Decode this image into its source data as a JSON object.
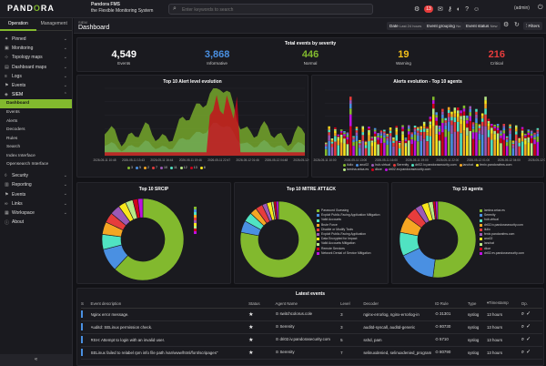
{
  "topbar": {
    "logo": "PANDORA",
    "product_line1": "Pandora FMS",
    "product_line2": "the Flexible Monitoring System",
    "search_placeholder": "Enter keywords to search",
    "alert_count": "13",
    "user": "(admin)"
  },
  "sidebar": {
    "tabs": [
      "Operation",
      "Management"
    ],
    "items": [
      {
        "label": "Pinned"
      },
      {
        "label": "Monitoring"
      },
      {
        "label": "Topology maps"
      },
      {
        "label": "Dashboard maps"
      },
      {
        "label": "Logs"
      },
      {
        "label": "Events"
      },
      {
        "label": "SIEM"
      }
    ],
    "submenu": [
      "Dashboard",
      "Events",
      "Alerts",
      "Decoders",
      "Rules",
      "Search",
      "Index Interface",
      "Opensearch Interface"
    ],
    "items_after": [
      {
        "label": "Security"
      },
      {
        "label": "Reporting"
      },
      {
        "label": "Events"
      },
      {
        "label": "Links"
      },
      {
        "label": "Workspace"
      },
      {
        "label": "About"
      }
    ],
    "collapse": "«"
  },
  "header": {
    "breadcrumb": "SIEM",
    "title": "Dashboard",
    "date_label": "Date",
    "date_value": "Last 24 hours",
    "grouping_label": "Event grouping",
    "grouping_value": "No",
    "status_label": "Event status",
    "status_value": "New",
    "filters": "Filters"
  },
  "severity": {
    "title": "Total events by severity",
    "cells": [
      {
        "value": "4,549",
        "label": "Events",
        "color": "#ffffff"
      },
      {
        "value": "3,868",
        "label": "Informative",
        "color": "#4a90e2"
      },
      {
        "value": "446",
        "label": "Normal",
        "color": "#82b92e"
      },
      {
        "value": "19",
        "label": "Warning",
        "color": "#f5c11b"
      },
      {
        "value": "216",
        "label": "Critical",
        "color": "#e63c3c"
      }
    ]
  },
  "alert_chart": {
    "title": "Top 10 Alert level evolution",
    "x_labels": [
      "2026-05-11 10:48",
      "2026-05-11 13:43",
      "2026-05-11 16:44",
      "2026-05-11 19:46",
      "2026-05-11 22:47",
      "2026-05-12 01:46",
      "2026-05-12 04:48",
      "2026-05-12 07:50"
    ],
    "legend": [
      "3",
      "5",
      "2",
      "7",
      "10",
      "11",
      "12",
      "13",
      "8"
    ],
    "legend_colors": [
      "#82b92e",
      "#4a90e2",
      "#f5a623",
      "#e63c3c",
      "#9b59b6",
      "#50e3c2",
      "#b8e986",
      "#d0021b",
      "#f8e71c"
    ]
  },
  "agents_chart": {
    "title": "Alerts evolution - Top 10 agents",
    "x_labels": [
      "2026-05-11 10:00",
      "2026-05-11 13:00",
      "2026-05-11 16:00",
      "2026-05-11 19:00",
      "2026-05-11 22:00",
      "2026-05-12 01:00",
      "2026-05-12 04:00",
      "2026-05-12 07:00"
    ],
    "legend": [
      "ilulio",
      "ano02",
      "hub-virtual",
      "Serenity",
      "dri02.iv.pandorasecurity.com",
      "lanchat",
      "fenix.pandorafms.com",
      "lamina.arica.es",
      "dkce",
      "dri02.ev.pandorasecurity.com"
    ],
    "legend_colors": [
      "#82b92e",
      "#4a90e2",
      "#9b59b6",
      "#e63c3c",
      "#50e3c2",
      "#f5a623",
      "#f8e71c",
      "#b8e986",
      "#d0021b",
      "#bd10e0"
    ]
  },
  "donut_srcip": {
    "title": "Top 10 SRCIP",
    "labels": [
      "",
      "",
      "",
      "",
      "",
      "",
      "",
      "",
      "",
      ""
    ],
    "colors": [
      "#82b92e",
      "#4a90e2",
      "#50e3c2",
      "#f5a623",
      "#e63c3c",
      "#9b59b6",
      "#f8e71c",
      "#b8e986",
      "#d0021b",
      "#bd10e0"
    ],
    "values": [
      62,
      9,
      6,
      5,
      4,
      4,
      3,
      3,
      2,
      2
    ]
  },
  "donut_mitre": {
    "title": "Top 10 MITRE ATT&CK",
    "labels": [
      "Password Guessing",
      "Exploit Public-Facing Application Mitigation",
      "Valid Accounts",
      "Brute Force",
      "Disable or Modify Tools",
      "Exploit Public-Facing Application",
      "Data Encrypted for Impact",
      "Valid Accounts Mitigation",
      "Remote Services",
      "Network Denial of Service Mitigation"
    ],
    "colors": [
      "#82b92e",
      "#4a90e2",
      "#50e3c2",
      "#f5a623",
      "#e63c3c",
      "#9b59b6",
      "#f8e71c",
      "#b8e986",
      "#d0021b",
      "#bd10e0"
    ],
    "values": [
      78,
      5,
      4,
      3,
      3,
      2,
      2,
      1,
      1,
      1
    ]
  },
  "donut_agents": {
    "title": "Top 10 agents",
    "labels": [
      "lamina.arica.es",
      "Serenity",
      "hub-virtual",
      "dri02.iv.pandorasecurity.com",
      "ilulio",
      "fenix.pandorafms.com",
      "ano02",
      "lanchat",
      "dkce",
      "dri02.ev.pandorasecurity.com"
    ],
    "colors": [
      "#82b92e",
      "#4a90e2",
      "#50e3c2",
      "#f5a623",
      "#e63c3c",
      "#9b59b6",
      "#f8e71c",
      "#b8e986",
      "#d0021b",
      "#bd10e0"
    ],
    "values": [
      52,
      16,
      10,
      7,
      5,
      3,
      3,
      2,
      1,
      1
    ]
  },
  "events": {
    "title": "Latest events",
    "columns": [
      "S",
      "Event description",
      "Status",
      "Agent Name",
      "Level",
      "Decoder",
      "ID Rule",
      "Type",
      "Timestamp",
      "Op."
    ],
    "rows": [
      {
        "color": "#4a90e2",
        "desc": "Nginx error message.",
        "agent": "switchcolorus.cole",
        "level": "3",
        "decoder": "nginx-errorlog, nginx-errorlog-in",
        "rule": "31301",
        "type": "syslog",
        "time": "13 hours"
      },
      {
        "color": "#4a90e2",
        "desc": "Auditd: SELinux permission check.",
        "agent": "Serenity",
        "level": "3",
        "decoder": "auditd-syscall, auditd-generic",
        "rule": "80730",
        "type": "syslog",
        "time": "13 hours"
      },
      {
        "color": "#4a90e2",
        "desc": "RSH: Attempt to login with an invalid user.",
        "agent": "dri02.iv.pandorasecurity.com",
        "level": "5",
        "decoder": "sshd, pam",
        "rule": "5710",
        "type": "syslog",
        "time": "13 hours"
      },
      {
        "color": "#4a90e2",
        "desc": "SELinux failed to relabel rpm info file path /var/www/html/font/scripages\"",
        "agent": "Serenity",
        "level": "7",
        "decoder": "selinuxdenied, selinuxdenied_program",
        "rule": "80790",
        "type": "syslog",
        "time": "13 hours"
      }
    ]
  }
}
